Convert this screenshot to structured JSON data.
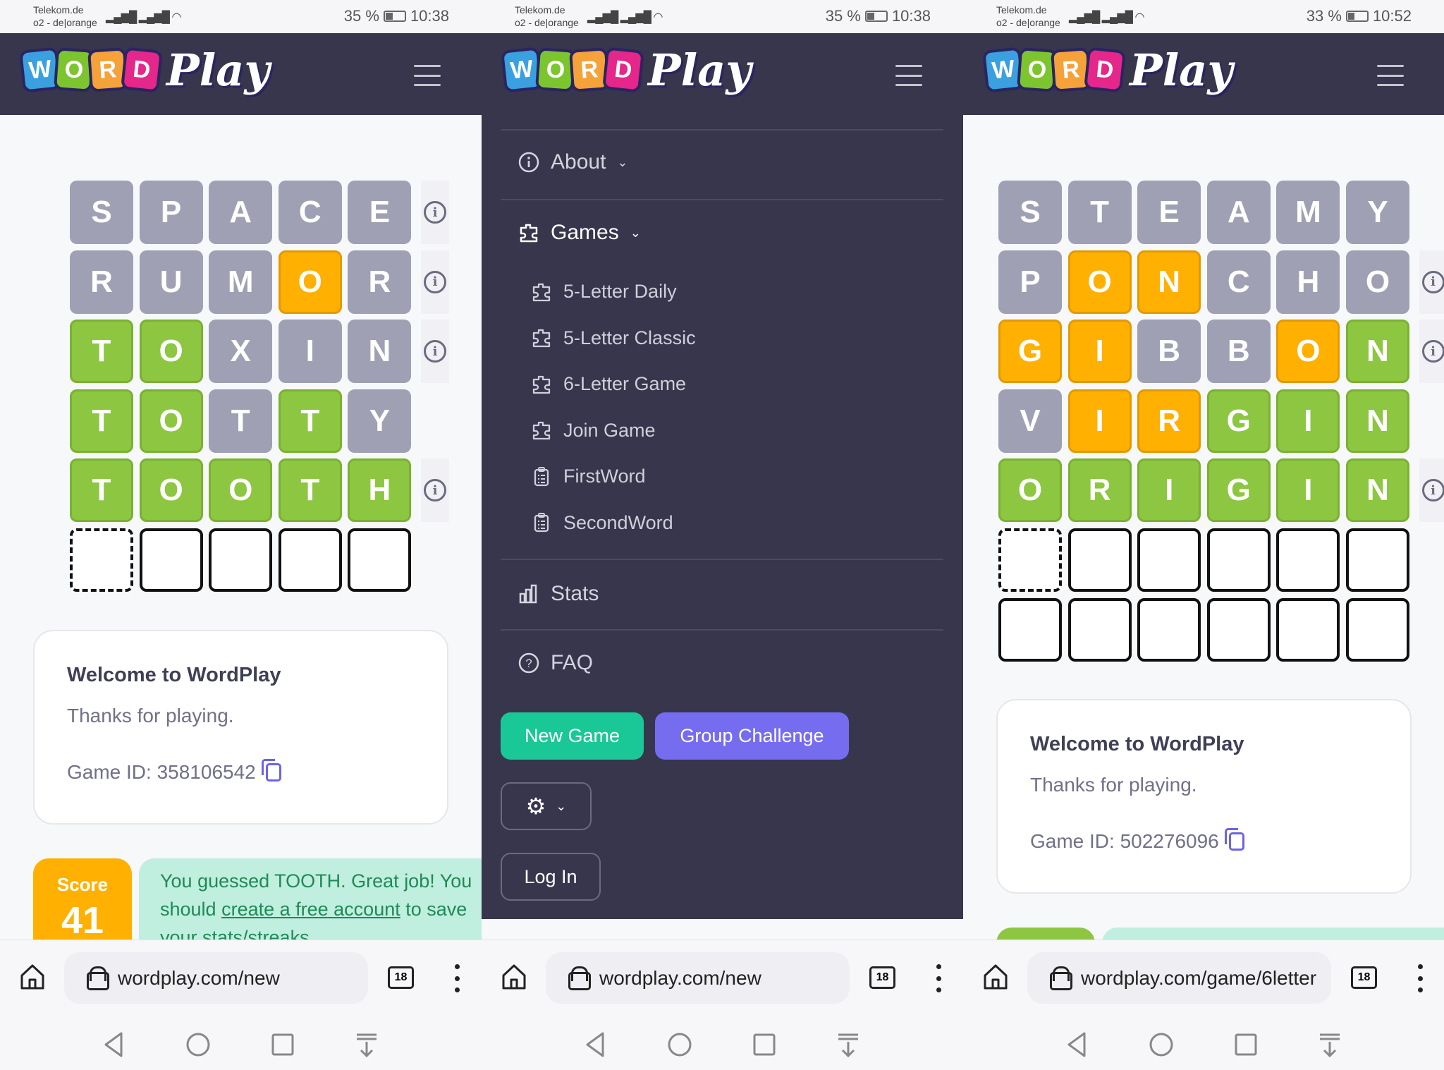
{
  "panels": [
    {
      "status": {
        "carrier1": "Telekom.de",
        "carrier2": "o2 - de|orange",
        "battery": "35 %",
        "battery_level": 35,
        "time": "10:38"
      },
      "logo": {
        "letters": [
          "W",
          "O",
          "R",
          "D"
        ],
        "play": "Play"
      },
      "board": {
        "rows": [
          {
            "letters": [
              "S",
              "P",
              "A",
              "C",
              "E"
            ],
            "states": [
              "x",
              "x",
              "x",
              "x",
              "x"
            ],
            "info": true
          },
          {
            "letters": [
              "R",
              "U",
              "M",
              "O",
              "R"
            ],
            "states": [
              "x",
              "x",
              "x",
              "o",
              "x"
            ],
            "info": true
          },
          {
            "letters": [
              "T",
              "O",
              "X",
              "I",
              "N"
            ],
            "states": [
              "g",
              "g",
              "x",
              "x",
              "x"
            ],
            "info": true
          },
          {
            "letters": [
              "T",
              "O",
              "T",
              "T",
              "Y"
            ],
            "states": [
              "g",
              "g",
              "x",
              "g",
              "x"
            ],
            "info": false
          },
          {
            "letters": [
              "T",
              "O",
              "O",
              "T",
              "H"
            ],
            "states": [
              "g",
              "g",
              "g",
              "g",
              "g"
            ],
            "info": true
          },
          {
            "letters": [
              "",
              "",
              "",
              "",
              ""
            ],
            "states": [
              "d",
              "e",
              "e",
              "e",
              "e"
            ],
            "info": false
          }
        ]
      },
      "card": {
        "title": "Welcome to WordPlay",
        "subtitle": "Thanks for playing.",
        "game_id": "Game ID: 358106542"
      },
      "score": {
        "label": "Score",
        "value": "41"
      },
      "message": {
        "before": "You guessed TOOTH. Great job! You should ",
        "link": "create a free account",
        "after": " to save your stats/streaks"
      },
      "browser": {
        "url": "wordplay.com/new",
        "tab_count": "18"
      }
    },
    {
      "status": {
        "carrier1": "Telekom.de",
        "carrier2": "o2 - de|orange",
        "battery": "35 %",
        "battery_level": 35,
        "time": "10:38"
      },
      "logo": {
        "letters": [
          "W",
          "O",
          "R",
          "D"
        ],
        "play": "Play"
      },
      "menu": {
        "about": "About",
        "games": "Games",
        "game_items": [
          {
            "label": "5-Letter Daily",
            "icon": "puzzle-icon"
          },
          {
            "label": "5-Letter Classic",
            "icon": "puzzle-icon"
          },
          {
            "label": "6-Letter Game",
            "icon": "puzzle-icon"
          },
          {
            "label": "Join Game",
            "icon": "puzzle-icon"
          },
          {
            "label": "FirstWord",
            "icon": "clipboard-icon"
          },
          {
            "label": "SecondWord",
            "icon": "clipboard-icon"
          }
        ],
        "stats": "Stats",
        "faq": "FAQ",
        "new_game": "New Game",
        "group_challenge": "Group Challenge",
        "login": "Log In"
      },
      "browser": {
        "url": "wordplay.com/new",
        "tab_count": "18"
      }
    },
    {
      "status": {
        "carrier1": "Telekom.de",
        "carrier2": "o2 - de|orange",
        "battery": "33 %",
        "battery_level": 33,
        "time": "10:52"
      },
      "logo": {
        "letters": [
          "W",
          "O",
          "R",
          "D"
        ],
        "play": "Play"
      },
      "board": {
        "rows": [
          {
            "letters": [
              "S",
              "T",
              "E",
              "A",
              "M",
              "Y"
            ],
            "states": [
              "x",
              "x",
              "x",
              "x",
              "x",
              "x"
            ],
            "info": false
          },
          {
            "letters": [
              "P",
              "O",
              "N",
              "C",
              "H",
              "O"
            ],
            "states": [
              "x",
              "o",
              "o",
              "x",
              "x",
              "x"
            ],
            "info": true
          },
          {
            "letters": [
              "G",
              "I",
              "B",
              "B",
              "O",
              "N"
            ],
            "states": [
              "o",
              "o",
              "x",
              "x",
              "o",
              "g"
            ],
            "info": true
          },
          {
            "letters": [
              "V",
              "I",
              "R",
              "G",
              "I",
              "N"
            ],
            "states": [
              "x",
              "o",
              "o",
              "g",
              "g",
              "g"
            ],
            "info": false
          },
          {
            "letters": [
              "O",
              "R",
              "I",
              "G",
              "I",
              "N"
            ],
            "states": [
              "g",
              "g",
              "g",
              "g",
              "g",
              "g"
            ],
            "info": true
          },
          {
            "letters": [
              "",
              "",
              "",
              "",
              "",
              ""
            ],
            "states": [
              "d",
              "e",
              "e",
              "e",
              "e",
              "e"
            ],
            "info": false
          },
          {
            "letters": [
              "",
              "",
              "",
              "",
              "",
              ""
            ],
            "states": [
              "e",
              "e",
              "e",
              "e",
              "e",
              "e"
            ],
            "info": false
          }
        ]
      },
      "card": {
        "title": "Welcome to WordPlay",
        "subtitle": "Thanks for playing.",
        "game_id": "Game ID: 502276096"
      },
      "browser": {
        "url": "wordplay.com/game/6letter",
        "tab_count": "18"
      }
    }
  ],
  "colors": {
    "header": "#37364c",
    "absent": "#a0a0b4",
    "correct": "#8dc641",
    "present": "#ffb000",
    "new_game": "#19c896",
    "group_challenge": "#766cf0"
  }
}
